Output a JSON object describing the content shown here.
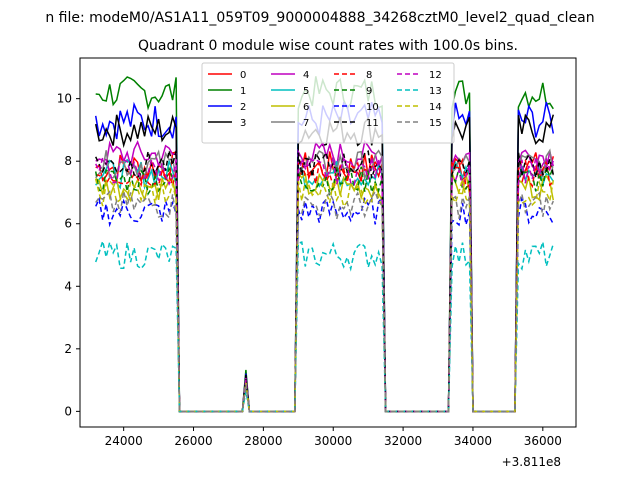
{
  "figure": {
    "suptitle": "n file: modeM0/AS1A11_059T09_9000004888_34268cztM0_level2_quad_clean",
    "offset_text": "+3.811e8"
  },
  "chart_data": {
    "type": "line",
    "title": "Quadrant 0 module wise count rates with 100.0s bins.",
    "xlabel": "",
    "ylabel": "",
    "x_offset": 381100000,
    "xlim": [
      22750,
      36950
    ],
    "ylim": [
      -0.5,
      11.3
    ],
    "xticks": [
      24000,
      26000,
      28000,
      30000,
      32000,
      34000,
      36000
    ],
    "yticks": [
      0,
      2,
      4,
      6,
      8,
      10
    ],
    "grid": false,
    "legend_position": "upper-center",
    "legend_columns": 4,
    "segments": [
      {
        "start": 23200,
        "end": 25500
      },
      {
        "start": 29000,
        "end": 31400
      },
      {
        "start": 33400,
        "end": 33900
      },
      {
        "start": 35300,
        "end": 36300
      }
    ],
    "gap_level": 0,
    "spike": {
      "x": 27500,
      "label": "small spike during gap"
    },
    "series": [
      {
        "name": "0",
        "color": "#ff0000",
        "dash": "solid",
        "level": 7.8,
        "noise": 0.35
      },
      {
        "name": "1",
        "color": "#008000",
        "dash": "solid",
        "level": 10.2,
        "noise": 0.35
      },
      {
        "name": "2",
        "color": "#0000ff",
        "dash": "solid",
        "level": 9.3,
        "noise": 0.4
      },
      {
        "name": "3",
        "color": "#000000",
        "dash": "solid",
        "level": 9.0,
        "noise": 0.35
      },
      {
        "name": "4",
        "color": "#bf00bf",
        "dash": "solid",
        "level": 8.2,
        "noise": 0.3
      },
      {
        "name": "5",
        "color": "#00bfbf",
        "dash": "solid",
        "level": 7.6,
        "noise": 0.3
      },
      {
        "name": "6",
        "color": "#bfbf00",
        "dash": "solid",
        "level": 7.2,
        "noise": 0.3
      },
      {
        "name": "7",
        "color": "#808080",
        "dash": "solid",
        "level": 7.9,
        "noise": 0.3
      },
      {
        "name": "8",
        "color": "#ff0000",
        "dash": "dashed",
        "level": 7.6,
        "noise": 0.3
      },
      {
        "name": "9",
        "color": "#008000",
        "dash": "dashed",
        "level": 7.4,
        "noise": 0.3
      },
      {
        "name": "10",
        "color": "#0000ff",
        "dash": "dashed",
        "level": 6.4,
        "noise": 0.3
      },
      {
        "name": "11",
        "color": "#000000",
        "dash": "dashed",
        "level": 7.9,
        "noise": 0.3
      },
      {
        "name": "12",
        "color": "#bf00bf",
        "dash": "dashed",
        "level": 7.7,
        "noise": 0.3
      },
      {
        "name": "13",
        "color": "#00bfbf",
        "dash": "dashed",
        "level": 5.0,
        "noise": 0.3
      },
      {
        "name": "14",
        "color": "#bfbf00",
        "dash": "dashed",
        "level": 7.0,
        "noise": 0.3
      },
      {
        "name": "15",
        "color": "#808080",
        "dash": "dashed",
        "level": 6.6,
        "noise": 0.3
      }
    ]
  }
}
